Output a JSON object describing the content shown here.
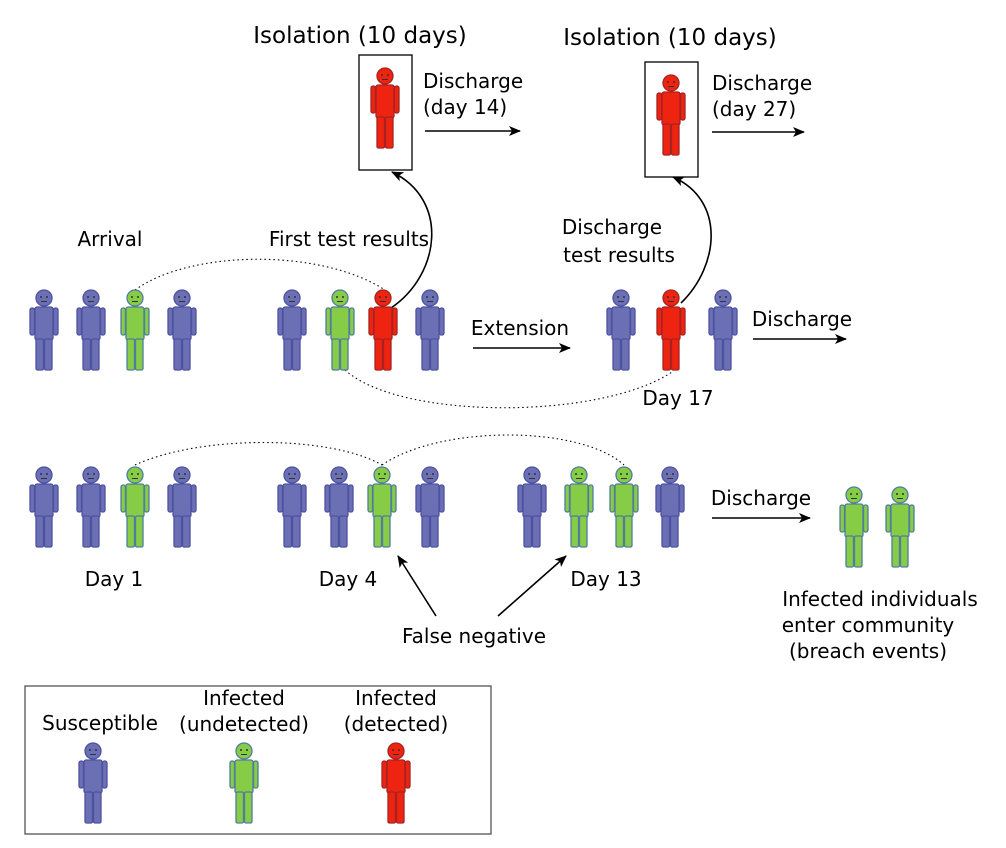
{
  "labels": {
    "isolation_1": "Isolation (10 days)",
    "isolation_2": "Isolation (10 days)",
    "discharge_day14_line1": "Discharge",
    "discharge_day14_line2": "(day 14)",
    "discharge_day27_line1": "Discharge",
    "discharge_day27_line2": "(day 27)",
    "arrival": "Arrival",
    "first_test_results": "First test results",
    "discharge_test_results_line1": "Discharge",
    "discharge_test_results_line2": "test results",
    "extension": "Extension",
    "discharge_row1": "Discharge",
    "day17": "Day 17",
    "day1": "Day 1",
    "day4": "Day 4",
    "day13": "Day 13",
    "discharge_row2": "Discharge",
    "false_negative": "False negative",
    "breach_line1": "Infected individuals",
    "breach_line2": "enter community",
    "breach_line3": "(breach events)"
  },
  "legend": {
    "susceptible": "Susceptible",
    "infected_undetected_line1": "Infected",
    "infected_undetected_line2": "(undetected)",
    "infected_detected_line1": "Infected",
    "infected_detected_line2": "(detected)"
  },
  "colors": {
    "susceptible": "#6b70b4",
    "susceptible_stroke": "#4d52a0",
    "infected_undetected": "#86cc46",
    "infected_undetected_stroke": "#4f7d9f",
    "infected_detected": "#ee2411",
    "infected_detected_stroke": "#a52323"
  }
}
